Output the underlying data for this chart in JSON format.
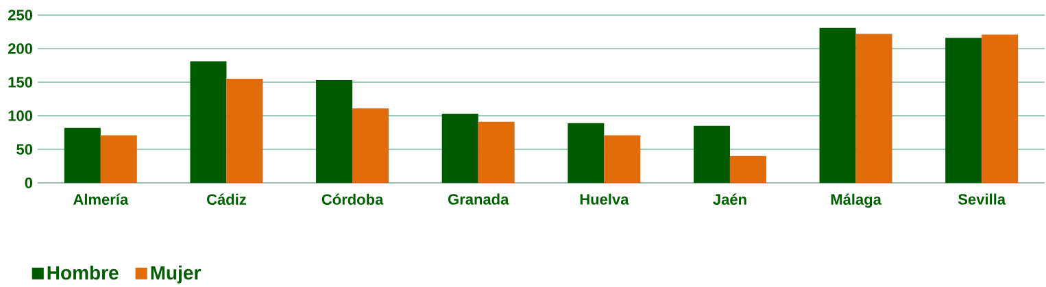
{
  "chart_data": {
    "type": "bar",
    "categories": [
      "Almería",
      "Cádiz",
      "Córdoba",
      "Granada",
      "Huelva",
      "Jaén",
      "Málaga",
      "Sevilla"
    ],
    "series": [
      {
        "name": "Hombre",
        "color": "#005a00",
        "values": [
          82,
          181,
          153,
          103,
          89,
          85,
          231,
          216
        ]
      },
      {
        "name": "Mujer",
        "color": "#e36c0a",
        "values": [
          71,
          155,
          111,
          91,
          71,
          40,
          222,
          221
        ]
      }
    ],
    "ylim": [
      0,
      250
    ],
    "yticks": [
      0,
      50,
      100,
      150,
      200,
      250
    ],
    "grid": "y",
    "legend": "bottom left"
  }
}
